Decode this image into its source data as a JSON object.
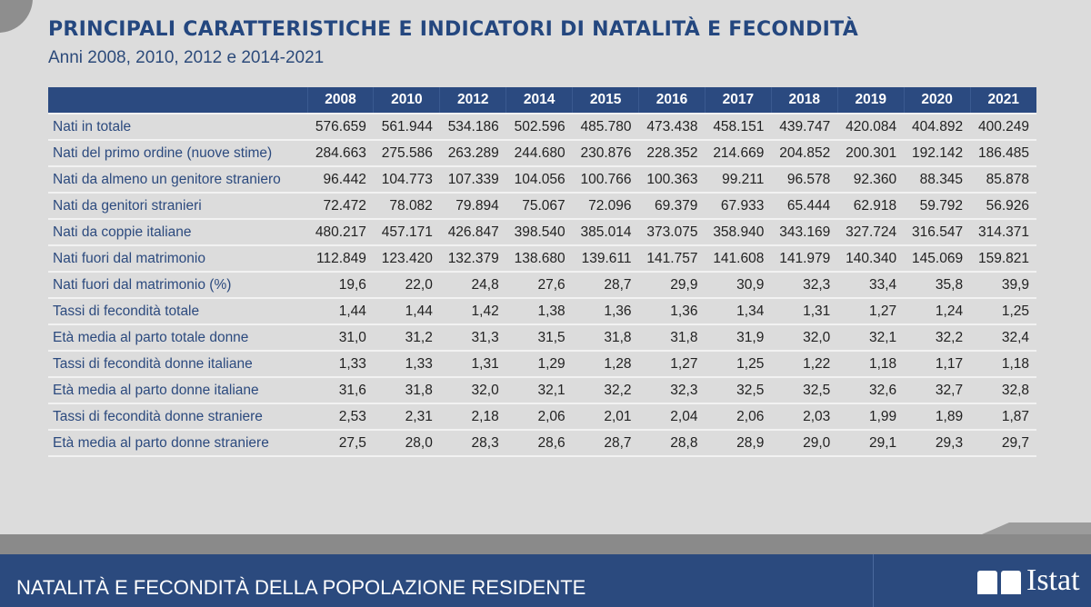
{
  "title": "PRINCIPALI CARATTERISTICHE E INDICATORI DI NATALITÀ E FECONDITÀ",
  "subtitle": "Anni 2008, 2010, 2012 e 2014-2021",
  "table": {
    "years": [
      "2008",
      "2010",
      "2012",
      "2014",
      "2015",
      "2016",
      "2017",
      "2018",
      "2019",
      "2020",
      "2021"
    ],
    "rows": [
      {
        "label": "Nati in totale",
        "values": [
          "576.659",
          "561.944",
          "534.186",
          "502.596",
          "485.780",
          "473.438",
          "458.151",
          "439.747",
          "420.084",
          "404.892",
          "400.249"
        ]
      },
      {
        "label": "Nati del primo ordine (nuove stime)",
        "values": [
          "284.663",
          "275.586",
          "263.289",
          "244.680",
          "230.876",
          "228.352",
          "214.669",
          "204.852",
          "200.301",
          "192.142",
          "186.485"
        ]
      },
      {
        "label": "Nati da almeno un genitore straniero",
        "values": [
          "96.442",
          "104.773",
          "107.339",
          "104.056",
          "100.766",
          "100.363",
          "99.211",
          "96.578",
          "92.360",
          "88.345",
          "85.878"
        ]
      },
      {
        "label": "Nati da genitori stranieri",
        "values": [
          "72.472",
          "78.082",
          "79.894",
          "75.067",
          "72.096",
          "69.379",
          "67.933",
          "65.444",
          "62.918",
          "59.792",
          "56.926"
        ]
      },
      {
        "label": "Nati da coppie italiane",
        "values": [
          "480.217",
          "457.171",
          "426.847",
          "398.540",
          "385.014",
          "373.075",
          "358.940",
          "343.169",
          "327.724",
          "316.547",
          "314.371"
        ]
      },
      {
        "label": "Nati fuori dal matrimonio",
        "values": [
          "112.849",
          "123.420",
          "132.379",
          "138.680",
          "139.611",
          "141.757",
          "141.608",
          "141.979",
          "140.340",
          "145.069",
          "159.821"
        ]
      },
      {
        "label": "Nati fuori dal matrimonio (%)",
        "values": [
          "19,6",
          "22,0",
          "24,8",
          "27,6",
          "28,7",
          "29,9",
          "30,9",
          "32,3",
          "33,4",
          "35,8",
          "39,9"
        ]
      },
      {
        "label": "Tassi di fecondità totale",
        "values": [
          "1,44",
          "1,44",
          "1,42",
          "1,38",
          "1,36",
          "1,36",
          "1,34",
          "1,31",
          "1,27",
          "1,24",
          "1,25"
        ]
      },
      {
        "label": "Età media al parto totale donne",
        "values": [
          "31,0",
          "31,2",
          "31,3",
          "31,5",
          "31,8",
          "31,8",
          "31,9",
          "32,0",
          "32,1",
          "32,2",
          "32,4"
        ]
      },
      {
        "label": "Tassi di fecondità donne italiane",
        "values": [
          "1,33",
          "1,33",
          "1,31",
          "1,29",
          "1,28",
          "1,27",
          "1,25",
          "1,22",
          "1,18",
          "1,17",
          "1,18"
        ]
      },
      {
        "label": "Età media al parto donne italiane",
        "values": [
          "31,6",
          "31,8",
          "32,0",
          "32,1",
          "32,2",
          "32,3",
          "32,5",
          "32,5",
          "32,6",
          "32,7",
          "32,8"
        ]
      },
      {
        "label": "Tassi di fecondità donne straniere",
        "values": [
          "2,53",
          "2,31",
          "2,18",
          "2,06",
          "2,01",
          "2,04",
          "2,06",
          "2,03",
          "1,99",
          "1,89",
          "1,87"
        ]
      },
      {
        "label": "Età media al parto donne straniere",
        "values": [
          "27,5",
          "28,0",
          "28,3",
          "28,6",
          "28,7",
          "28,8",
          "28,9",
          "29,0",
          "29,1",
          "29,3",
          "29,7"
        ]
      }
    ]
  },
  "footer": {
    "text": "NATALITÀ E FECONDITÀ DELLA POPOLAZIONE RESIDENTE",
    "logo_text": "Istat"
  },
  "colors": {
    "brand_blue": "#2b4a7e",
    "background": "#dcdcdc"
  }
}
